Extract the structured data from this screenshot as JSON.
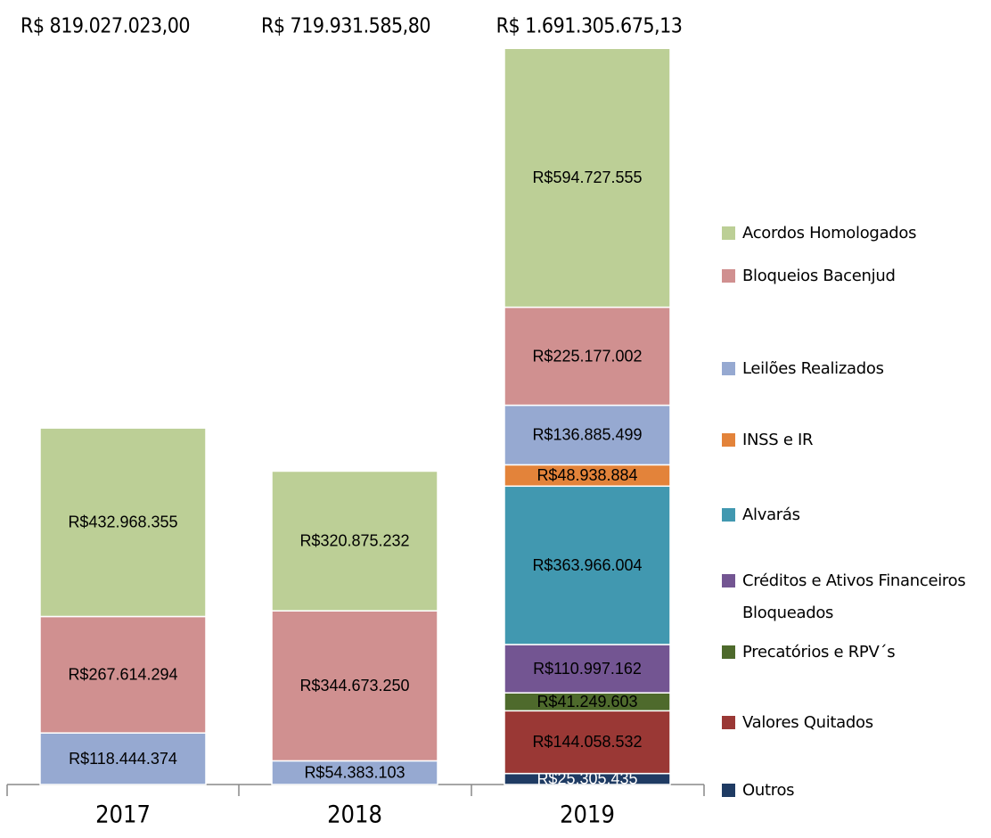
{
  "chart_data": {
    "type": "stacked_bar",
    "categories": [
      "2017",
      "2018",
      "2019"
    ],
    "totals": [
      "R$ 819.027.023,00",
      "R$ 719.931.585,80",
      "R$ 1.691.305.675,13"
    ],
    "ylim": [
      0,
      1700000000
    ],
    "series": [
      {
        "name": "Outros",
        "color": "#1f3b63",
        "values": [
          null,
          null,
          25305435
        ],
        "value_labels": [
          null,
          null,
          "R$25.305.435"
        ]
      },
      {
        "name": "Valores Quitados",
        "color": "#9a3835",
        "values": [
          null,
          null,
          144058532
        ],
        "value_labels": [
          null,
          null,
          "R$144.058.532"
        ]
      },
      {
        "name": "Precatórios e RPV´s",
        "color": "#4e6a2c",
        "values": [
          null,
          null,
          41249603
        ],
        "value_labels": [
          null,
          null,
          "R$41.249.603"
        ]
      },
      {
        "name": "Créditos e Ativos Financeiros Bloqueados",
        "color": "#735592",
        "values": [
          null,
          null,
          110997162
        ],
        "value_labels": [
          null,
          null,
          "R$110.997.162"
        ]
      },
      {
        "name": "Alvarás",
        "color": "#4198b0",
        "values": [
          null,
          null,
          363966004
        ],
        "value_labels": [
          null,
          null,
          "R$363.966.004"
        ]
      },
      {
        "name": "INSS e IR",
        "color": "#e3833a",
        "values": [
          null,
          null,
          48938884
        ],
        "value_labels": [
          null,
          null,
          "R$48.938.884"
        ]
      },
      {
        "name": "Leilões Realizados",
        "color": "#96a9d1",
        "values": [
          118444374,
          54383103,
          136885499
        ],
        "value_labels": [
          "R$118.444.374",
          "R$54.383.103",
          "R$136.885.499"
        ]
      },
      {
        "name": "Bloqueios Bacenjud",
        "color": "#d09090",
        "values": [
          267614294,
          344673250,
          225177002
        ],
        "value_labels": [
          "R$267.614.294",
          "R$344.673.250",
          "R$225.177.002"
        ]
      },
      {
        "name": "Acordos Homologados",
        "color": "#bccf96",
        "values": [
          432968355,
          320875232,
          594727555
        ],
        "value_labels": [
          "R$432.968.355",
          "R$320.875.232",
          "R$594.727.555"
        ]
      }
    ]
  }
}
